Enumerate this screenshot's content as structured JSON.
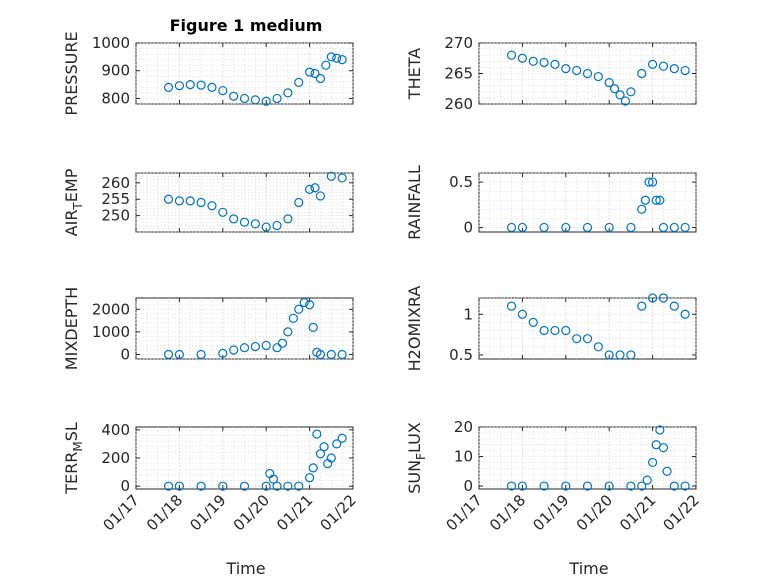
{
  "figure_title": "Figure 1 medium",
  "colors": {
    "marker": "#0072BD",
    "axis": "#262626",
    "grid": "#d9d9d9"
  },
  "chart_data": [
    {
      "type": "scatter",
      "ylabel": "PRESSURE",
      "ylim": [
        780,
        1000
      ],
      "yticks": [
        800,
        900,
        1000
      ],
      "ytick_labels": [
        "800",
        "900",
        "1000"
      ],
      "grid": true,
      "x": [
        "01/17 18:00",
        "01/18 00:00",
        "01/18 06:00",
        "01/18 12:00",
        "01/18 18:00",
        "01/19 00:00",
        "01/19 06:00",
        "01/19 12:00",
        "01/19 18:00",
        "01/20 00:00",
        "01/20 06:00",
        "01/20 12:00",
        "01/20 18:00",
        "01/21 00:00",
        "01/21 03:00",
        "01/21 06:00",
        "01/21 09:00",
        "01/21 12:00",
        "01/21 15:00",
        "01/21 18:00"
      ],
      "y": [
        840,
        846,
        850,
        848,
        840,
        828,
        808,
        800,
        795,
        790,
        800,
        820,
        858,
        895,
        890,
        872,
        920,
        950,
        945,
        940
      ]
    },
    {
      "type": "scatter",
      "ylabel": "THETA",
      "ylim": [
        260,
        270
      ],
      "yticks": [
        260,
        265,
        270
      ],
      "ytick_labels": [
        "260",
        "265",
        "270"
      ],
      "grid": true,
      "x": [
        "01/17 18:00",
        "01/18 00:00",
        "01/18 06:00",
        "01/18 12:00",
        "01/18 18:00",
        "01/19 00:00",
        "01/19 06:00",
        "01/19 12:00",
        "01/19 18:00",
        "01/20 00:00",
        "01/20 03:00",
        "01/20 06:00",
        "01/20 09:00",
        "01/20 12:00",
        "01/20 18:00",
        "01/21 00:00",
        "01/21 06:00",
        "01/21 12:00",
        "01/21 18:00"
      ],
      "y": [
        268,
        267.5,
        267,
        266.8,
        266.5,
        265.8,
        265.5,
        265,
        264.5,
        263.5,
        262.5,
        261.5,
        260.5,
        262,
        265,
        266.5,
        266.2,
        265.8,
        265.5
      ]
    },
    {
      "type": "scatter",
      "ylabel": "AIR_TEMP",
      "ylim": [
        245,
        263
      ],
      "yticks": [
        250,
        255,
        260
      ],
      "ytick_labels": [
        "250",
        "255",
        "260"
      ],
      "grid": true,
      "x": [
        "01/17 18:00",
        "01/18 00:00",
        "01/18 06:00",
        "01/18 12:00",
        "01/18 18:00",
        "01/19 00:00",
        "01/19 06:00",
        "01/19 12:00",
        "01/19 18:00",
        "01/20 00:00",
        "01/20 06:00",
        "01/20 12:00",
        "01/20 18:00",
        "01/21 00:00",
        "01/21 03:00",
        "01/21 06:00",
        "01/21 12:00",
        "01/21 18:00"
      ],
      "y": [
        255,
        254.5,
        254.5,
        254,
        253,
        251,
        249,
        248,
        247.5,
        246.5,
        247,
        249,
        254,
        258,
        258.5,
        256,
        262,
        261.5
      ]
    },
    {
      "type": "scatter",
      "ylabel": "RAINFALL",
      "ylim": [
        -0.05,
        0.6
      ],
      "yticks": [
        0,
        0.5
      ],
      "ytick_labels": [
        "0",
        "0.5"
      ],
      "grid": true,
      "x": [
        "01/17 18:00",
        "01/18 00:00",
        "01/18 12:00",
        "01/19 00:00",
        "01/19 12:00",
        "01/20 00:00",
        "01/20 12:00",
        "01/20 18:00",
        "01/20 20:00",
        "01/20 22:00",
        "01/21 00:00",
        "01/21 02:00",
        "01/21 04:00",
        "01/21 06:00",
        "01/21 12:00",
        "01/21 18:00"
      ],
      "y": [
        0,
        0,
        0,
        0,
        0,
        0,
        0,
        0.2,
        0.3,
        0.5,
        0.5,
        0.3,
        0.3,
        0,
        0,
        0
      ]
    },
    {
      "type": "scatter",
      "ylabel": "MIXDEPTH",
      "ylim": [
        -200,
        2500
      ],
      "yticks": [
        0,
        1000,
        2000
      ],
      "ytick_labels": [
        "0",
        "1000",
        "2000"
      ],
      "grid": true,
      "x": [
        "01/17 18:00",
        "01/18 00:00",
        "01/18 12:00",
        "01/19 00:00",
        "01/19 06:00",
        "01/19 12:00",
        "01/19 18:00",
        "01/20 00:00",
        "01/20 06:00",
        "01/20 09:00",
        "01/20 12:00",
        "01/20 15:00",
        "01/20 18:00",
        "01/20 21:00",
        "01/21 00:00",
        "01/21 02:00",
        "01/21 04:00",
        "01/21 06:00",
        "01/21 12:00",
        "01/21 18:00"
      ],
      "y": [
        0,
        0,
        0,
        50,
        200,
        300,
        350,
        400,
        300,
        500,
        1000,
        1600,
        2000,
        2300,
        2200,
        1200,
        100,
        0,
        0,
        0
      ]
    },
    {
      "type": "scatter",
      "ylabel": "H2OMIXRA",
      "ylim": [
        0.45,
        1.2
      ],
      "yticks": [
        0.5,
        1
      ],
      "ytick_labels": [
        "0.5",
        "1"
      ],
      "grid": true,
      "x": [
        "01/17 18:00",
        "01/18 00:00",
        "01/18 06:00",
        "01/18 12:00",
        "01/18 18:00",
        "01/19 00:00",
        "01/19 06:00",
        "01/19 12:00",
        "01/19 18:00",
        "01/20 00:00",
        "01/20 06:00",
        "01/20 12:00",
        "01/20 18:00",
        "01/21 00:00",
        "01/21 06:00",
        "01/21 12:00",
        "01/21 18:00"
      ],
      "y": [
        1.1,
        1.0,
        0.9,
        0.8,
        0.8,
        0.8,
        0.7,
        0.7,
        0.6,
        0.5,
        0.5,
        0.5,
        1.1,
        1.2,
        1.2,
        1.1,
        1.0
      ]
    },
    {
      "type": "scatter",
      "ylabel": "TERR_MSL",
      "ylim": [
        -20,
        420
      ],
      "yticks": [
        0,
        200,
        400
      ],
      "ytick_labels": [
        "0",
        "200",
        "400"
      ],
      "grid": true,
      "x": [
        "01/17 18:00",
        "01/18 00:00",
        "01/18 12:00",
        "01/19 00:00",
        "01/19 12:00",
        "01/20 00:00",
        "01/20 02:00",
        "01/20 04:00",
        "01/20 06:00",
        "01/20 12:00",
        "01/20 18:00",
        "01/21 00:00",
        "01/21 02:00",
        "01/21 04:00",
        "01/21 06:00",
        "01/21 08:00",
        "01/21 10:00",
        "01/21 12:00",
        "01/21 15:00",
        "01/21 18:00"
      ],
      "y": [
        0,
        0,
        0,
        0,
        0,
        0,
        90,
        50,
        0,
        0,
        0,
        60,
        130,
        370,
        230,
        280,
        160,
        200,
        300,
        340
      ]
    },
    {
      "type": "scatter",
      "ylabel": "SUN_FLUX",
      "ylim": [
        -1,
        20
      ],
      "yticks": [
        0,
        10,
        20
      ],
      "ytick_labels": [
        "0",
        "10",
        "20"
      ],
      "grid": true,
      "x": [
        "01/17 18:00",
        "01/18 00:00",
        "01/18 12:00",
        "01/19 00:00",
        "01/19 12:00",
        "01/20 00:00",
        "01/20 12:00",
        "01/20 18:00",
        "01/20 21:00",
        "01/21 00:00",
        "01/21 02:00",
        "01/21 04:00",
        "01/21 06:00",
        "01/21 08:00",
        "01/21 12:00",
        "01/21 18:00"
      ],
      "y": [
        0,
        0,
        0,
        0,
        0,
        0,
        0,
        0,
        2,
        8,
        14,
        19,
        13,
        5,
        0,
        0
      ]
    }
  ],
  "x_axis": {
    "xlabel": "Time",
    "xlim": [
      "01/17 00:00",
      "01/22 00:00"
    ],
    "ticks": [
      "01/17",
      "01/18",
      "01/19",
      "01/20",
      "01/21",
      "01/22"
    ]
  }
}
